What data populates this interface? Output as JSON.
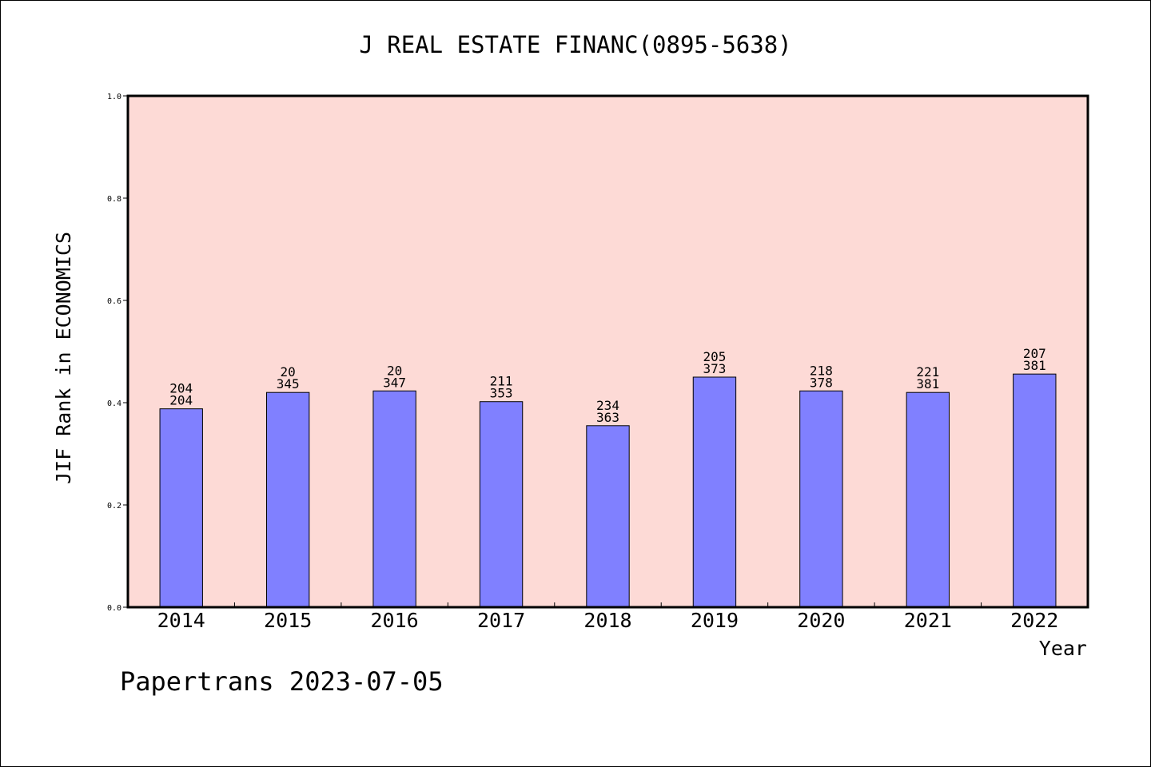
{
  "chart_data": {
    "type": "bar",
    "title": "J REAL ESTATE FINANC(0895-5638)",
    "xlabel": "Year",
    "ylabel": "JIF Rank in ECONOMICS",
    "categories": [
      "2014",
      "2015",
      "2016",
      "2017",
      "2018",
      "2019",
      "2020",
      "2021",
      "2022"
    ],
    "values": [
      0.388,
      0.42,
      0.423,
      0.402,
      0.355,
      0.45,
      0.423,
      0.42,
      0.456
    ],
    "labels_top": [
      "204",
      "20",
      "20",
      "211",
      "234",
      "205",
      "218",
      "221",
      "207"
    ],
    "labels_bottom": [
      "204",
      "345",
      "347",
      "353",
      "363",
      "373",
      "378",
      "381",
      "381"
    ],
    "ylim": [
      0.0,
      1.0
    ],
    "yticks": [
      "0.0",
      "0.2",
      "0.4",
      "0.6",
      "0.8",
      "1.0"
    ],
    "grid": false,
    "colors": {
      "plot_background": "#fddad6",
      "bar_fill": "#8080ff",
      "bar_stroke": "#000000"
    }
  },
  "footer": {
    "text": "Papertrans 2023-07-05"
  }
}
